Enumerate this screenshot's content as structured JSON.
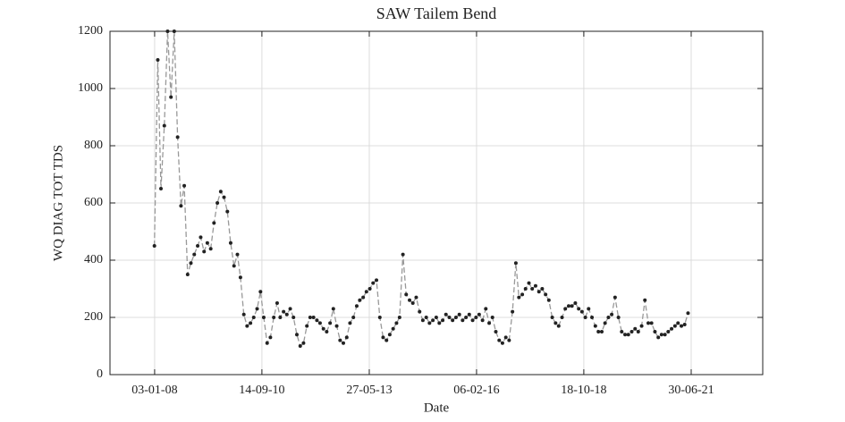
{
  "chart_data": {
    "type": "line",
    "title": "SAW Tailem Bend",
    "xlabel": "Date",
    "ylabel": "WQ DIAG TOT TDS",
    "x": [
      "2008-01-01",
      "2008-02-01",
      "2008-03-01",
      "2008-04-01",
      "2008-05-01",
      "2008-06-01",
      "2008-07-01",
      "2008-08-01",
      "2008-09-01",
      "2008-10-01",
      "2008-11-01",
      "2008-12-01",
      "2009-01-01",
      "2009-02-01",
      "2009-03-01",
      "2009-04-01",
      "2009-05-01",
      "2009-06-01",
      "2009-07-01",
      "2009-08-01",
      "2009-09-01",
      "2009-10-01",
      "2009-11-01",
      "2009-12-01",
      "2010-01-01",
      "2010-02-01",
      "2010-03-01",
      "2010-04-01",
      "2010-05-01",
      "2010-06-01",
      "2010-07-01",
      "2010-08-01",
      "2010-09-01",
      "2010-10-01",
      "2010-11-01",
      "2010-12-01",
      "2011-01-01",
      "2011-02-01",
      "2011-03-01",
      "2011-04-01",
      "2011-05-01",
      "2011-06-01",
      "2011-07-01",
      "2011-08-01",
      "2011-09-01",
      "2011-10-01",
      "2011-11-01",
      "2011-12-01",
      "2012-01-01",
      "2012-02-01",
      "2012-03-01",
      "2012-04-01",
      "2012-05-01",
      "2012-06-01",
      "2012-07-01",
      "2012-08-01",
      "2012-09-01",
      "2012-10-01",
      "2012-11-01",
      "2012-12-01",
      "2013-01-01",
      "2013-02-01",
      "2013-03-01",
      "2013-04-01",
      "2013-05-01",
      "2013-06-01",
      "2013-07-01",
      "2013-08-01",
      "2013-09-01",
      "2013-10-01",
      "2013-11-01",
      "2013-12-01",
      "2014-01-01",
      "2014-02-01",
      "2014-03-01",
      "2014-04-01",
      "2014-05-01",
      "2014-06-01",
      "2014-07-01",
      "2014-08-01",
      "2014-09-01",
      "2014-10-01",
      "2014-11-01",
      "2014-12-01",
      "2015-01-01",
      "2015-02-01",
      "2015-03-01",
      "2015-04-01",
      "2015-05-01",
      "2015-06-01",
      "2015-07-01",
      "2015-08-01",
      "2015-09-01",
      "2015-10-01",
      "2015-11-01",
      "2015-12-01",
      "2016-01-01",
      "2016-02-01",
      "2016-03-01",
      "2016-04-01",
      "2016-05-01",
      "2016-06-01",
      "2016-07-01",
      "2016-08-01",
      "2016-09-01",
      "2016-10-01",
      "2016-11-01",
      "2016-12-01",
      "2017-01-01",
      "2017-02-01",
      "2017-03-01",
      "2017-04-01",
      "2017-05-01",
      "2017-06-01",
      "2017-07-01",
      "2017-08-01",
      "2017-09-01",
      "2017-10-01",
      "2017-11-01",
      "2017-12-01",
      "2018-01-01",
      "2018-02-01",
      "2018-03-01",
      "2018-04-01",
      "2018-05-01",
      "2018-06-01",
      "2018-07-01",
      "2018-08-01",
      "2018-09-01",
      "2018-10-01",
      "2018-11-01",
      "2018-12-01",
      "2019-01-01",
      "2019-02-01",
      "2019-03-01",
      "2019-04-01",
      "2019-05-01",
      "2019-06-01",
      "2019-07-01",
      "2019-08-01",
      "2019-09-01",
      "2019-10-01",
      "2019-11-01",
      "2019-12-01",
      "2020-01-01",
      "2020-02-01",
      "2020-03-01",
      "2020-04-01",
      "2020-05-01",
      "2020-06-01",
      "2020-07-01",
      "2020-08-01",
      "2020-09-01",
      "2020-10-01",
      "2020-11-01",
      "2020-12-01",
      "2021-01-01",
      "2021-02-01",
      "2021-03-01",
      "2021-04-01",
      "2021-05-01",
      "2021-06-01"
    ],
    "values": [
      450,
      1100,
      650,
      870,
      1200,
      970,
      1200,
      830,
      590,
      660,
      350,
      390,
      420,
      450,
      480,
      430,
      460,
      440,
      530,
      600,
      640,
      620,
      570,
      460,
      380,
      420,
      340,
      210,
      170,
      180,
      200,
      230,
      290,
      200,
      110,
      130,
      200,
      250,
      200,
      220,
      210,
      230,
      200,
      140,
      100,
      110,
      170,
      200,
      200,
      190,
      180,
      160,
      150,
      180,
      230,
      170,
      120,
      110,
      130,
      180,
      200,
      240,
      260,
      270,
      290,
      300,
      320,
      330,
      200,
      130,
      120,
      140,
      160,
      180,
      200,
      420,
      280,
      260,
      250,
      270,
      220,
      190,
      200,
      180,
      190,
      200,
      180,
      190,
      210,
      200,
      190,
      200,
      210,
      190,
      200,
      210,
      190,
      200,
      210,
      190,
      230,
      180,
      200,
      150,
      120,
      110,
      130,
      120,
      220,
      390,
      270,
      280,
      300,
      320,
      300,
      310,
      290,
      300,
      280,
      260,
      200,
      180,
      170,
      200,
      230,
      240,
      240,
      250,
      230,
      220,
      200,
      230,
      200,
      170,
      150,
      150,
      180,
      200,
      210,
      270,
      200,
      150,
      140,
      140,
      150,
      160,
      150,
      170,
      260,
      180,
      180,
      150,
      130,
      140,
      140,
      150,
      160,
      170,
      180,
      170,
      175,
      215
    ],
    "line_color": "#999999",
    "marker_color": "#222222",
    "xlim": [
      "2006-11-19",
      "2023-04-18"
    ],
    "xticks": [
      {
        "value": "2008-01-03",
        "label": "03-01-08"
      },
      {
        "value": "2010-09-14",
        "label": "14-09-10"
      },
      {
        "value": "2013-05-27",
        "label": "27-05-13"
      },
      {
        "value": "2016-02-06",
        "label": "06-02-16"
      },
      {
        "value": "2018-10-18",
        "label": "18-10-18"
      },
      {
        "value": "2021-06-30",
        "label": "30-06-21"
      }
    ],
    "ylim": [
      0,
      1200
    ],
    "yticks": [
      0,
      200,
      400,
      600,
      800,
      1000,
      1200
    ],
    "grid": true
  }
}
